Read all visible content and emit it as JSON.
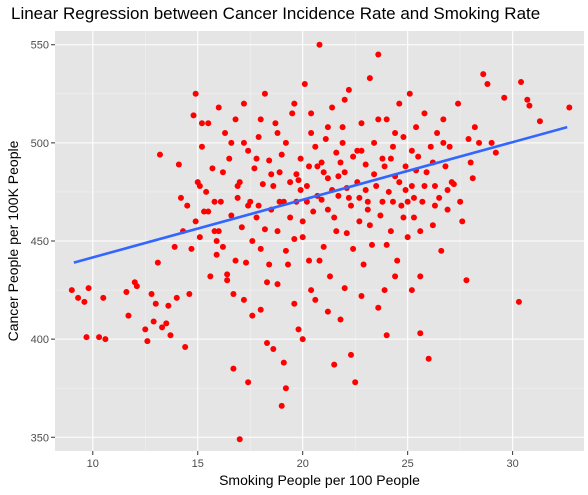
{
  "chart_data": {
    "type": "scatter",
    "title": "Linear Regression between Cancer Incidence Rate and Smoking Rate",
    "xlabel": "Smoking People per 100 People",
    "ylabel": "Cancer People per 100K People",
    "xlim": [
      8.2,
      33.4
    ],
    "ylim": [
      343,
      557
    ],
    "x_ticks": [
      10,
      15,
      20,
      25,
      30
    ],
    "y_ticks": [
      350,
      400,
      450,
      500,
      550
    ],
    "grid": true,
    "legend": "none",
    "point_color": "#ff0000",
    "line_color": "#3366ff",
    "panel_background": "#e5e5e5",
    "regression_line": {
      "x": [
        9.1,
        32.6
      ],
      "y": [
        439,
        508
      ]
    },
    "points": [
      [
        9.0,
        425
      ],
      [
        9.3,
        421
      ],
      [
        9.6,
        419
      ],
      [
        9.7,
        401
      ],
      [
        9.8,
        426
      ],
      [
        10.3,
        401
      ],
      [
        10.5,
        421
      ],
      [
        10.6,
        400
      ],
      [
        11.6,
        424
      ],
      [
        11.7,
        412
      ],
      [
        12.0,
        429
      ],
      [
        12.1,
        427
      ],
      [
        12.5,
        405
      ],
      [
        12.6,
        399
      ],
      [
        12.8,
        423
      ],
      [
        12.9,
        409
      ],
      [
        13.0,
        418
      ],
      [
        13.1,
        439
      ],
      [
        13.2,
        494
      ],
      [
        13.3,
        406
      ],
      [
        13.5,
        408
      ],
      [
        13.6,
        417
      ],
      [
        13.7,
        402
      ],
      [
        13.9,
        447
      ],
      [
        14.0,
        421
      ],
      [
        14.1,
        489
      ],
      [
        14.2,
        472
      ],
      [
        14.3,
        455
      ],
      [
        14.4,
        396
      ],
      [
        14.5,
        468
      ],
      [
        14.6,
        423
      ],
      [
        14.7,
        446
      ],
      [
        14.8,
        514
      ],
      [
        14.9,
        525
      ],
      [
        15.0,
        480
      ],
      [
        15.1,
        452
      ],
      [
        15.2,
        498
      ],
      [
        15.3,
        465
      ],
      [
        15.4,
        475
      ],
      [
        15.5,
        510
      ],
      [
        15.6,
        432
      ],
      [
        15.7,
        487
      ],
      [
        15.8,
        455
      ],
      [
        15.9,
        443
      ],
      [
        16.0,
        518
      ],
      [
        16.1,
        470
      ],
      [
        16.2,
        447
      ],
      [
        16.3,
        505
      ],
      [
        16.4,
        433
      ],
      [
        16.5,
        492
      ],
      [
        16.6,
        463
      ],
      [
        16.7,
        423
      ],
      [
        16.8,
        512
      ],
      [
        16.9,
        478
      ],
      [
        17.0,
        349
      ],
      [
        17.1,
        457
      ],
      [
        17.2,
        520
      ],
      [
        17.3,
        439
      ],
      [
        17.4,
        496
      ],
      [
        17.5,
        470
      ],
      [
        17.6,
        412
      ],
      [
        17.7,
        487
      ],
      [
        17.8,
        462
      ],
      [
        17.9,
        503
      ],
      [
        18.0,
        446
      ],
      [
        18.1,
        479
      ],
      [
        18.2,
        525
      ],
      [
        18.3,
        429
      ],
      [
        18.4,
        491
      ],
      [
        18.5,
        466
      ],
      [
        18.6,
        395
      ],
      [
        18.7,
        510
      ],
      [
        18.8,
        455
      ],
      [
        18.9,
        485
      ],
      [
        19.0,
        366
      ],
      [
        19.1,
        470
      ],
      [
        19.2,
        500
      ],
      [
        19.3,
        438
      ],
      [
        19.4,
        480
      ],
      [
        19.5,
        515
      ],
      [
        19.6,
        451
      ],
      [
        19.7,
        470
      ],
      [
        19.8,
        405
      ],
      [
        19.9,
        492
      ],
      [
        20.0,
        460
      ],
      [
        20.1,
        530
      ],
      [
        20.2,
        478
      ],
      [
        20.3,
        440
      ],
      [
        20.4,
        505
      ],
      [
        20.5,
        465
      ],
      [
        20.6,
        420
      ],
      [
        20.7,
        488
      ],
      [
        20.8,
        550
      ],
      [
        20.9,
        471
      ],
      [
        21.0,
        447
      ],
      [
        21.1,
        502
      ],
      [
        21.2,
        482
      ],
      [
        21.3,
        432
      ],
      [
        21.4,
        518
      ],
      [
        21.5,
        462
      ],
      [
        21.6,
        495
      ],
      [
        21.7,
        473
      ],
      [
        21.8,
        410
      ],
      [
        21.9,
        508
      ],
      [
        22.0,
        485
      ],
      [
        22.1,
        454
      ],
      [
        22.2,
        527
      ],
      [
        22.3,
        468
      ],
      [
        22.4,
        493
      ],
      [
        22.5,
        378
      ],
      [
        22.6,
        480
      ],
      [
        22.7,
        460
      ],
      [
        22.8,
        510
      ],
      [
        22.9,
        438
      ],
      [
        23.0,
        489
      ],
      [
        23.1,
        470
      ],
      [
        23.2,
        533
      ],
      [
        23.3,
        448
      ],
      [
        23.4,
        500
      ],
      [
        23.5,
        478
      ],
      [
        23.6,
        545
      ],
      [
        23.7,
        463
      ],
      [
        23.8,
        492
      ],
      [
        23.9,
        425
      ],
      [
        24.0,
        512
      ],
      [
        24.1,
        475
      ],
      [
        24.2,
        455
      ],
      [
        24.3,
        498
      ],
      [
        24.4,
        483
      ],
      [
        24.5,
        440
      ],
      [
        24.6,
        520
      ],
      [
        24.7,
        468
      ],
      [
        24.8,
        503
      ],
      [
        24.9,
        488
      ],
      [
        25.0,
        452
      ],
      [
        25.1,
        525
      ],
      [
        25.2,
        478
      ],
      [
        25.3,
        462
      ],
      [
        25.4,
        508
      ],
      [
        25.5,
        493
      ],
      [
        25.6,
        432
      ],
      [
        25.7,
        470
      ],
      [
        25.8,
        515
      ],
      [
        25.9,
        485
      ],
      [
        26.0,
        390
      ],
      [
        26.1,
        498
      ],
      [
        26.2,
        458
      ],
      [
        26.3,
        478
      ],
      [
        26.4,
        505
      ],
      [
        26.5,
        472
      ],
      [
        26.6,
        445
      ],
      [
        26.7,
        512
      ],
      [
        26.8,
        488
      ],
      [
        26.9,
        466
      ],
      [
        27.0,
        498
      ],
      [
        27.2,
        479
      ],
      [
        27.4,
        520
      ],
      [
        27.6,
        460
      ],
      [
        27.8,
        430
      ],
      [
        28.0,
        490
      ],
      [
        28.2,
        508
      ],
      [
        28.4,
        500
      ],
      [
        28.6,
        535
      ],
      [
        28.8,
        530
      ],
      [
        29.0,
        500
      ],
      [
        29.2,
        495
      ],
      [
        29.6,
        523
      ],
      [
        30.3,
        419
      ],
      [
        30.4,
        531
      ],
      [
        30.7,
        522
      ],
      [
        30.8,
        519
      ],
      [
        31.3,
        511
      ],
      [
        32.7,
        518
      ],
      [
        15.2,
        510
      ],
      [
        15.8,
        470
      ],
      [
        16.2,
        485
      ],
      [
        16.6,
        500
      ],
      [
        17.0,
        480
      ],
      [
        17.4,
        468
      ],
      [
        17.8,
        492
      ],
      [
        18.2,
        456
      ],
      [
        18.6,
        478
      ],
      [
        19.0,
        494
      ],
      [
        19.4,
        462
      ],
      [
        19.8,
        481
      ],
      [
        20.2,
        470
      ],
      [
        20.6,
        498
      ],
      [
        21.0,
        485
      ],
      [
        21.4,
        476
      ],
      [
        21.8,
        490
      ],
      [
        22.2,
        472
      ],
      [
        22.6,
        496
      ],
      [
        23.0,
        476
      ],
      [
        23.4,
        484
      ],
      [
        23.8,
        470
      ],
      [
        24.2,
        492
      ],
      [
        24.6,
        480
      ],
      [
        25.0,
        470
      ],
      [
        25.4,
        486
      ],
      [
        25.8,
        478
      ],
      [
        26.2,
        490
      ],
      [
        16.0,
        455
      ],
      [
        16.8,
        440
      ],
      [
        17.6,
        450
      ],
      [
        18.4,
        438
      ],
      [
        19.2,
        445
      ],
      [
        20.0,
        452
      ],
      [
        20.8,
        440
      ],
      [
        21.6,
        455
      ],
      [
        22.4,
        446
      ],
      [
        23.2,
        458
      ],
      [
        24.0,
        448
      ],
      [
        24.8,
        462
      ],
      [
        25.6,
        455
      ],
      [
        17.2,
        500
      ],
      [
        18.0,
        512
      ],
      [
        18.8,
        505
      ],
      [
        19.6,
        520
      ],
      [
        20.4,
        515
      ],
      [
        21.2,
        508
      ],
      [
        22.0,
        522
      ],
      [
        22.8,
        496
      ],
      [
        23.6,
        512
      ],
      [
        24.4,
        505
      ],
      [
        25.2,
        496
      ],
      [
        16.4,
        430
      ],
      [
        17.2,
        420
      ],
      [
        18.0,
        415
      ],
      [
        18.8,
        428
      ],
      [
        19.6,
        418
      ],
      [
        20.4,
        425
      ],
      [
        21.2,
        414
      ],
      [
        22.0,
        426
      ],
      [
        22.8,
        422
      ],
      [
        23.6,
        416
      ],
      [
        24.4,
        432
      ],
      [
        25.2,
        425
      ],
      [
        19.1,
        388
      ],
      [
        21.5,
        387
      ],
      [
        20.0,
        400
      ],
      [
        18.3,
        398
      ],
      [
        22.3,
        392
      ],
      [
        24.0,
        402
      ],
      [
        25.6,
        403
      ],
      [
        17.4,
        378
      ],
      [
        16.7,
        385
      ],
      [
        19.2,
        375
      ],
      [
        21.2,
        466
      ],
      [
        20.7,
        473
      ],
      [
        22.1,
        477
      ],
      [
        21.7,
        483
      ],
      [
        20.3,
        488
      ],
      [
        19.7,
        484
      ],
      [
        23.1,
        466
      ],
      [
        22.7,
        472
      ],
      [
        21.9,
        500
      ],
      [
        20.9,
        490
      ],
      [
        19.9,
        476
      ],
      [
        18.9,
        470
      ],
      [
        24.3,
        470
      ],
      [
        24.9,
        476
      ],
      [
        23.9,
        488
      ],
      [
        25.3,
        472
      ],
      [
        26.3,
        468
      ],
      [
        17.9,
        468
      ],
      [
        18.5,
        484
      ],
      [
        16.9,
        472
      ],
      [
        15.5,
        465
      ],
      [
        15.1,
        478
      ],
      [
        14.9,
        460
      ],
      [
        15.9,
        450
      ],
      [
        27.1,
        480
      ],
      [
        27.5,
        470
      ],
      [
        28.1,
        482
      ],
      [
        26.7,
        500
      ],
      [
        27.9,
        502
      ],
      [
        26.9,
        476
      ]
    ]
  }
}
